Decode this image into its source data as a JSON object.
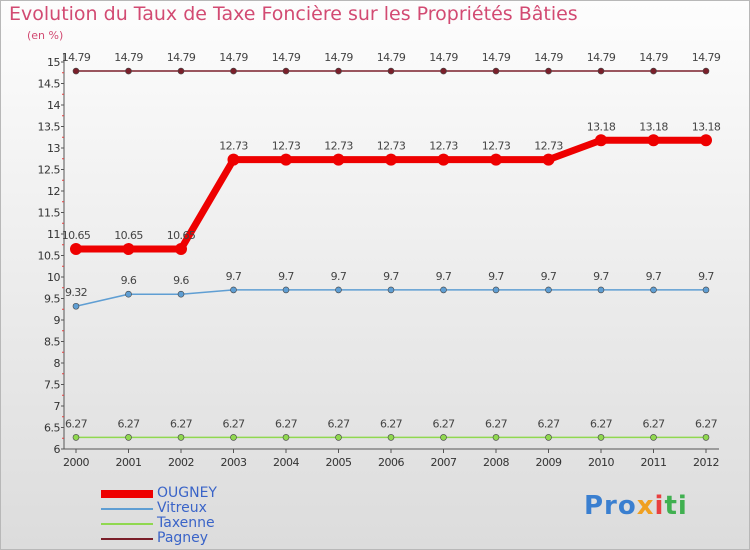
{
  "chart_data": {
    "type": "line",
    "title": "Evolution du Taux de Taxe Foncière sur les Propriétés Bâties",
    "ylabel": "(en %)",
    "xlabel": "",
    "ylim": [
      6,
      15
    ],
    "yticks": [
      "6",
      "6.5",
      "7",
      "7.5",
      "8",
      "8.5",
      "9",
      "9.5",
      "10",
      "10.5",
      "11",
      "11.5",
      "12",
      "12.5",
      "13",
      "13.5",
      "14",
      "14.5",
      "15"
    ],
    "categories": [
      "2000",
      "2001",
      "2002",
      "2003",
      "2004",
      "2005",
      "2006",
      "2007",
      "2008",
      "2009",
      "2010",
      "2011",
      "2012"
    ],
    "series": [
      {
        "name": "Pagney",
        "color": "#7a1f2a",
        "values": [
          14.79,
          14.79,
          14.79,
          14.79,
          14.79,
          14.79,
          14.79,
          14.79,
          14.79,
          14.79,
          14.79,
          14.79,
          14.79
        ],
        "labels": [
          "14.79",
          "14.79",
          "14.79",
          "14.79",
          "14.79",
          "14.79",
          "14.79",
          "14.79",
          "14.79",
          "14.79",
          "14.79",
          "14.79",
          "14.79"
        ]
      },
      {
        "name": "OUGNEY",
        "color": "#ee0000",
        "values": [
          10.65,
          10.65,
          10.65,
          12.73,
          12.73,
          12.73,
          12.73,
          12.73,
          12.73,
          12.73,
          13.18,
          13.18,
          13.18
        ],
        "labels": [
          "10.65",
          "10.65",
          "10.65",
          "12.73",
          "12.73",
          "12.73",
          "12.73",
          "12.73",
          "12.73",
          "12.73",
          "13.18",
          "13.18",
          "13.18"
        ]
      },
      {
        "name": "Vitreux",
        "color": "#5f9ed3",
        "values": [
          9.32,
          9.6,
          9.6,
          9.7,
          9.7,
          9.7,
          9.7,
          9.7,
          9.7,
          9.7,
          9.7,
          9.7,
          9.7
        ],
        "labels": [
          "9.32",
          "9.6",
          "9.6",
          "9.7",
          "9.7",
          "9.7",
          "9.7",
          "9.7",
          "9.7",
          "9.7",
          "9.7",
          "9.7",
          "9.7"
        ]
      },
      {
        "name": "Taxenne",
        "color": "#90d850",
        "values": [
          6.27,
          6.27,
          6.27,
          6.27,
          6.27,
          6.27,
          6.27,
          6.27,
          6.27,
          6.27,
          6.27,
          6.27,
          6.27
        ],
        "labels": [
          "6.27",
          "6.27",
          "6.27",
          "6.27",
          "6.27",
          "6.27",
          "6.27",
          "6.27",
          "6.27",
          "6.27",
          "6.27",
          "6.27",
          "6.27"
        ]
      }
    ],
    "legend": [
      "OUGNEY",
      "Vitreux",
      "Taxenne",
      "Pagney"
    ],
    "legend_position": "bottom-left"
  },
  "brand": {
    "logo_parts": [
      "Pro",
      "x",
      "i",
      "ti"
    ]
  }
}
